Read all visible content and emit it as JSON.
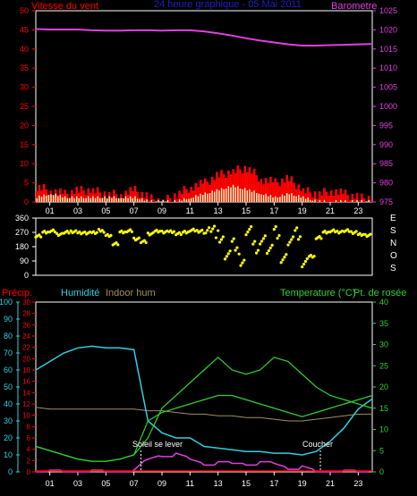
{
  "header": {
    "wind_title": "Vitesse du vent",
    "chart_title": "24 heure graphique - 05 Mai 2011",
    "baro_title": "Barometre"
  },
  "colors": {
    "wind": "#ff0000",
    "gust": "#ffffc0",
    "baro": "#e040e0",
    "title": "#2020c0",
    "dir": "#ffff00",
    "humidity": "#30d0e0",
    "indoor": "#a09060",
    "temp": "#30d030",
    "dew": "#30d030",
    "rain": "#ff0000",
    "solar": "#e040e0",
    "grid": "#008000",
    "axis": "#ffffff"
  },
  "x_ticks": [
    "01",
    "03",
    "05",
    "07",
    "09",
    "11",
    "13",
    "15",
    "17",
    "19",
    "21",
    "23"
  ],
  "chart_data": [
    {
      "type": "line",
      "name": "wind-baro",
      "x": [
        0,
        1,
        2,
        3,
        4,
        5,
        6,
        7,
        8,
        9,
        10,
        11,
        12,
        13,
        14,
        15,
        16,
        17,
        18,
        19,
        20,
        21,
        22,
        23,
        24
      ],
      "series": [
        {
          "name": "Barometre",
          "axis": "right",
          "values": [
            1020.2,
            1020.1,
            1020.1,
            1020.1,
            1019.9,
            1019.8,
            1019.8,
            1019.9,
            1019.9,
            1019.8,
            1019.9,
            1019.9,
            1019.6,
            1019.1,
            1018.5,
            1017.8,
            1017.2,
            1016.7,
            1016.2,
            1015.9,
            1015.9,
            1016.0,
            1016.1,
            1016.2,
            1016.3
          ]
        },
        {
          "name": "Vitesse du vent",
          "axis": "left",
          "values": [
            4,
            3,
            2,
            3,
            3,
            2,
            2,
            3,
            1,
            0,
            2,
            4,
            5,
            7,
            8,
            9,
            6,
            5,
            6,
            3,
            2,
            3,
            2,
            1,
            1
          ]
        },
        {
          "name": "Rafale",
          "axis": "left",
          "values": [
            1,
            2,
            1,
            1,
            1,
            1,
            1,
            1,
            0,
            0,
            0,
            1,
            2,
            3,
            4,
            3,
            2,
            1,
            2,
            1,
            0,
            0,
            0,
            0,
            0
          ]
        }
      ],
      "yleft": {
        "label": "Vitesse du vent",
        "ticks": [
          0,
          5,
          10,
          15,
          20,
          25,
          30,
          35,
          40,
          45,
          50
        ],
        "ylim": [
          0,
          50
        ]
      },
      "yright": {
        "label": "Barometre",
        "ticks": [
          975,
          980,
          985,
          990,
          995,
          1000,
          1005,
          1010,
          1015,
          1020,
          1025
        ],
        "ylim": [
          975,
          1025
        ]
      },
      "grid": false
    },
    {
      "type": "scatter",
      "name": "wind-direction",
      "x": [
        0,
        0.5,
        1,
        1.5,
        2,
        2.5,
        3,
        3.5,
        4,
        4.5,
        5,
        5.5,
        6,
        6.5,
        7,
        7.5,
        8,
        8.5,
        9,
        9.5,
        10,
        10.5,
        11,
        11.5,
        12,
        12.5,
        13,
        13.5,
        14,
        14.5,
        15,
        15.5,
        16,
        16.5,
        17,
        17.5,
        18,
        18.5,
        19,
        19.5,
        20,
        20.5,
        21,
        21.5,
        22,
        22.5,
        23,
        23.5
      ],
      "values": [
        250,
        270,
        280,
        260,
        270,
        275,
        270,
        265,
        270,
        280,
        250,
        200,
        270,
        280,
        230,
        210,
        260,
        280,
        270,
        275,
        265,
        270,
        285,
        280,
        270,
        265,
        240,
        120,
        200,
        90,
        270,
        180,
        240,
        150,
        270,
        120,
        200,
        260,
        90,
        120,
        240,
        270,
        280,
        275,
        280,
        270,
        260,
        250
      ],
      "yticks": [
        0,
        90,
        180,
        270,
        360
      ],
      "ylim": [
        0,
        360
      ],
      "right_labels": [
        "E",
        "S",
        "N",
        "O",
        "S"
      ]
    },
    {
      "type": "line",
      "name": "humidity-temperature",
      "x": [
        0,
        1,
        2,
        3,
        4,
        5,
        6,
        7,
        8,
        9,
        10,
        11,
        12,
        13,
        14,
        15,
        16,
        17,
        18,
        19,
        20,
        21,
        22,
        23,
        24
      ],
      "series": [
        {
          "name": "Humidité",
          "axis": "left",
          "values": [
            60,
            65,
            70,
            73,
            74,
            73,
            73,
            72,
            30,
            23,
            20,
            20,
            15,
            14,
            13,
            12,
            12,
            11,
            11,
            10,
            12,
            18,
            26,
            37,
            43
          ]
        },
        {
          "name": "Indoor hum",
          "axis": "left",
          "values": [
            38,
            37,
            37,
            37,
            37,
            37,
            37,
            37,
            36,
            36,
            35,
            34,
            34,
            33,
            33,
            32,
            32,
            31,
            30,
            30,
            31,
            32,
            33,
            34,
            34
          ]
        },
        {
          "name": "Temperature (°C)",
          "axis": "right",
          "values": [
            6,
            5,
            4,
            3,
            2.5,
            2.5,
            3,
            4,
            8,
            15,
            18,
            21,
            24,
            27,
            24,
            23,
            24,
            27,
            26,
            23,
            20,
            18,
            17,
            16,
            15
          ]
        },
        {
          "name": "Pt. de rosée",
          "axis": "right",
          "values": [
            6,
            5,
            4,
            3,
            2.5,
            2.5,
            3,
            4,
            12,
            14,
            15,
            16,
            17,
            18,
            18,
            17,
            16,
            15,
            14,
            13,
            14,
            15,
            16,
            17,
            18
          ]
        }
      ],
      "rain": {
        "name": "Précip.",
        "ticks": [
          0,
          2,
          4,
          6,
          8,
          10,
          12,
          14,
          16,
          18,
          20,
          22,
          24,
          26,
          28,
          30
        ],
        "ylim": [
          0,
          30
        ],
        "values": [
          0,
          0,
          0,
          0,
          0,
          0,
          0,
          0,
          0,
          0,
          0,
          0,
          0,
          0,
          0,
          0,
          0,
          0,
          0,
          0,
          0,
          0,
          0,
          0,
          0
        ]
      },
      "solar_values": [
        0,
        0,
        0,
        0,
        0,
        0,
        0,
        0,
        3,
        4,
        4,
        3,
        2,
        2,
        2,
        2,
        2,
        2,
        1,
        1,
        0,
        0,
        0,
        0,
        0
      ],
      "yleft": {
        "label": "Humidité",
        "ticks": [
          0,
          10,
          20,
          30,
          40,
          50,
          60,
          70,
          80,
          90,
          100
        ],
        "ylim": [
          0,
          100
        ]
      },
      "yright": {
        "label": "Temperature (°C)",
        "ticks": [
          0,
          5,
          10,
          15,
          20,
          25,
          30,
          35,
          40
        ],
        "ylim": [
          0,
          40
        ]
      },
      "annotations": [
        {
          "text": "Soleil se lever",
          "x": 7.5
        },
        {
          "text": "Coucher",
          "x": 20.3
        }
      ],
      "grid": false
    }
  ],
  "bottom": {
    "precip_label": "Précip.",
    "humidity_label": "Humidité",
    "indoor_label": "Indoor hum",
    "temp_label": "Temperature (°C)",
    "dew_label": "Pt. de rosée",
    "sunrise": "Soleil se lever",
    "sunset": "Coucher"
  }
}
